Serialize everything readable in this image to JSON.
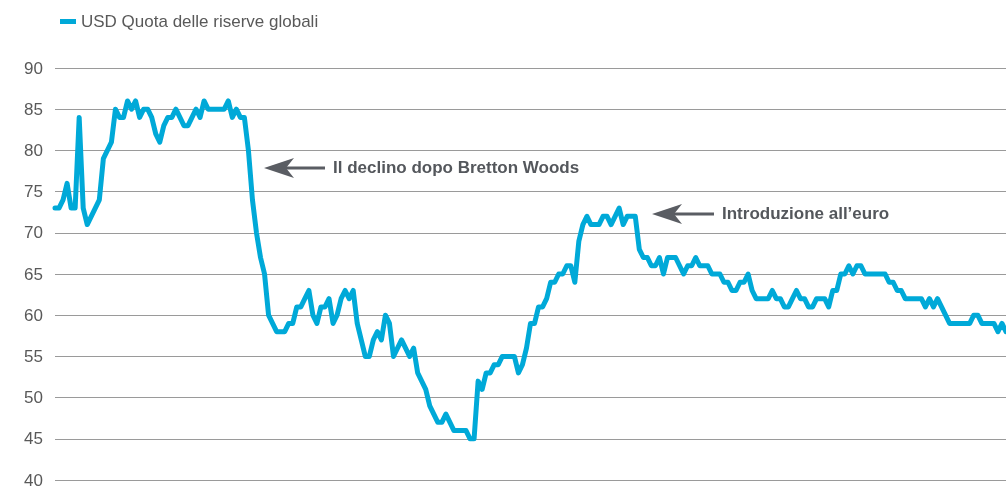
{
  "chart_data": {
    "type": "line",
    "categories": [
      null,
      null,
      null,
      null,
      null,
      null,
      null,
      null,
      null,
      null,
      null,
      null,
      null,
      null,
      null,
      null,
      null,
      null,
      null,
      null,
      null,
      null,
      null,
      null,
      null,
      null,
      null,
      null,
      null,
      null,
      null,
      null,
      null,
      null,
      null,
      null,
      null,
      null,
      null,
      null,
      null,
      null,
      null,
      null,
      null,
      null,
      null,
      null,
      null,
      null,
      null,
      null,
      null,
      null,
      null,
      null,
      null,
      null,
      null,
      null,
      null,
      null,
      null,
      null,
      null,
      null,
      null,
      null,
      null,
      null,
      null,
      null,
      null,
      null,
      null,
      null,
      null,
      null,
      null,
      null,
      null,
      null,
      null,
      null,
      null,
      null,
      null,
      null,
      null,
      null,
      null,
      null,
      null,
      null,
      null,
      null,
      null,
      null,
      null,
      null,
      null,
      null,
      null,
      null,
      null,
      null,
      null,
      null,
      null,
      null,
      null,
      null,
      null,
      null,
      null,
      null,
      null,
      null,
      null,
      null,
      null,
      null,
      null,
      null,
      null,
      null,
      null,
      null,
      null,
      null,
      null,
      null,
      null,
      null,
      null,
      null,
      null,
      null,
      null,
      null,
      null,
      null,
      null,
      null,
      null,
      null,
      null,
      null,
      null,
      null,
      null,
      null,
      null,
      null,
      null,
      null,
      null,
      null,
      null,
      null,
      null,
      null,
      null,
      null,
      null,
      null,
      null,
      null,
      null,
      null,
      null,
      null,
      null,
      null,
      null,
      null,
      null,
      null,
      null,
      null,
      null,
      null,
      null,
      null,
      null,
      null,
      null,
      null,
      null,
      null,
      null,
      null,
      null,
      null,
      null,
      null,
      null,
      null,
      null,
      null,
      null,
      null,
      null,
      null,
      null,
      null,
      null,
      null,
      null,
      null,
      null,
      null,
      null,
      null,
      null,
      null,
      null,
      null,
      null,
      null,
      null,
      null,
      null,
      null,
      null,
      null,
      null,
      null,
      null,
      null,
      null,
      null,
      null,
      null,
      null,
      null,
      null
    ],
    "series": [
      {
        "name": "USD Quota delle riserve globali",
        "color": "#00a9d8",
        "values": [
          73,
          73,
          74,
          76,
          73,
          73,
          84,
          73,
          71,
          72,
          73,
          74,
          79,
          80,
          81,
          85,
          84,
          84,
          86,
          85,
          86,
          84,
          85,
          85,
          84,
          82,
          81,
          83,
          84,
          84,
          85,
          84,
          83,
          83,
          84,
          85,
          84,
          86,
          85,
          85,
          85,
          85,
          85,
          86,
          84,
          85,
          84,
          84,
          80,
          74,
          70,
          67,
          65,
          60,
          59,
          58,
          58,
          58,
          59,
          59,
          61,
          61,
          62,
          63,
          60,
          59,
          61,
          61,
          62,
          59,
          60,
          62,
          63,
          62,
          63,
          59,
          57,
          55,
          55,
          57,
          58,
          57,
          60,
          59,
          55,
          56,
          57,
          56,
          55,
          56,
          53,
          52,
          51,
          49,
          48,
          47,
          47,
          48,
          47,
          46,
          46,
          46,
          46,
          45,
          45,
          52,
          51,
          53,
          53,
          54,
          54,
          55,
          55,
          55,
          55,
          53,
          54,
          56,
          59,
          59,
          61,
          61,
          62,
          64,
          64,
          65,
          65,
          66,
          66,
          64,
          69,
          71,
          72,
          71,
          71,
          71,
          72,
          72,
          71,
          72,
          73,
          71,
          72,
          72,
          72,
          68,
          67,
          67,
          66,
          66,
          67,
          65,
          67,
          67,
          67,
          66,
          65,
          66,
          66,
          67,
          66,
          66,
          66,
          65,
          65,
          65,
          64,
          64,
          63,
          63,
          64,
          64,
          65,
          63,
          62,
          62,
          62,
          62,
          63,
          62,
          62,
          61,
          61,
          62,
          63,
          62,
          62,
          61,
          61,
          62,
          62,
          62,
          61,
          63,
          63,
          65,
          65,
          66,
          65,
          66,
          66,
          65,
          65,
          65,
          65,
          65,
          65,
          64,
          64,
          63,
          63,
          62,
          62,
          62,
          62,
          62,
          61,
          62,
          61,
          62,
          61,
          60,
          59,
          59,
          59,
          59,
          59,
          59,
          60,
          60,
          59,
          59,
          59,
          59,
          58,
          59,
          58
        ]
      }
    ],
    "ylim": [
      40,
      90
    ],
    "yticks": [
      40,
      45,
      50,
      55,
      60,
      65,
      70,
      75,
      80,
      85,
      90
    ],
    "grid": "y",
    "legend": "top left",
    "line_style": "solid",
    "tick_labels": "y",
    "annotations": [
      "Il declino dopo Bretton Woods",
      "Introduzione all’euro"
    ]
  }
}
